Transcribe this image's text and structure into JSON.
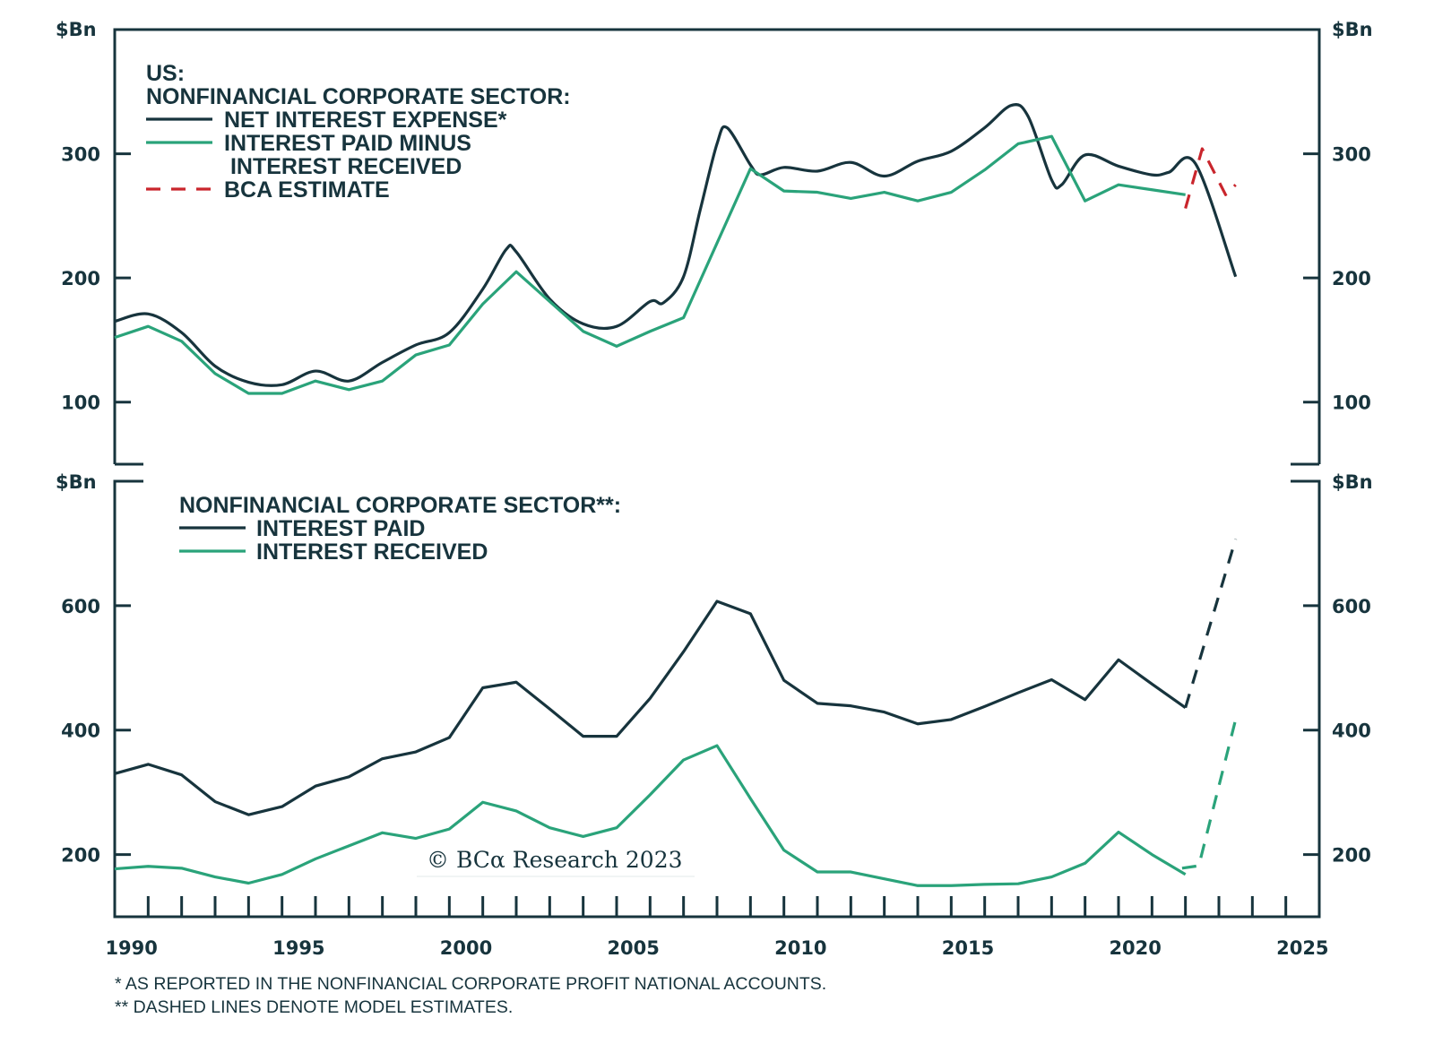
{
  "colors": {
    "dark": "#17343d",
    "green": "#2aa37a",
    "red": "#c9252c",
    "axis": "#17343d"
  },
  "chart_data": [
    {
      "type": "line",
      "panel": "top",
      "ylabel_left": "$Bn",
      "ylabel_right": "$Bn",
      "ylim": [
        50,
        400
      ],
      "yticks": [
        100,
        200,
        300
      ],
      "xlim": [
        1990,
        2026
      ],
      "grid": false,
      "legend": {
        "placement": "top-left",
        "title_lines": [
          "US:",
          "NONFINANCIAL CORPORATE SECTOR:"
        ],
        "entries": [
          {
            "label_lines": [
              "NET INTEREST EXPENSE*"
            ],
            "series": "net_interest_expense"
          },
          {
            "label_lines": [
              "INTEREST PAID MINUS",
              " INTEREST RECEIVED"
            ],
            "series": "paid_minus_received"
          },
          {
            "label_lines": [
              "BCA ESTIMATE"
            ],
            "series": "bca_estimate"
          }
        ]
      },
      "series": [
        {
          "name": "NET INTEREST EXPENSE*",
          "key": "net_interest_expense",
          "color": "#17343d",
          "style": "solid",
          "smooth": true,
          "x": [
            1990,
            1991,
            1992,
            1993,
            1994,
            1995,
            1996,
            1997,
            1998,
            1999,
            2000,
            2001,
            2001.7,
            2002,
            2003,
            2004,
            2005,
            2006,
            2006.4,
            2007,
            2007.5,
            2008,
            2008.3,
            2009,
            2009.3,
            2010,
            2011,
            2012,
            2013,
            2014,
            2015,
            2016,
            2016.8,
            2017.3,
            2018,
            2018.3,
            2019,
            2020,
            2021,
            2021.5,
            2022.3,
            2023.5
          ],
          "values": [
            165,
            171,
            156,
            129,
            116,
            114,
            125,
            117,
            132,
            146,
            156,
            191,
            223,
            221,
            183,
            163,
            161,
            181,
            180,
            201,
            255,
            308,
            321,
            291,
            283,
            289,
            286,
            293,
            282,
            294,
            302,
            321,
            339,
            330,
            279,
            275,
            299,
            290,
            283,
            285,
            292,
            201
          ]
        },
        {
          "name": "INTEREST PAID MINUS INTEREST RECEIVED",
          "key": "paid_minus_received",
          "color": "#2aa37a",
          "style": "solid",
          "smooth": false,
          "x": [
            1990,
            1991,
            1992,
            1993,
            1994,
            1995,
            1996,
            1997,
            1998,
            1999,
            2000,
            2001,
            2002,
            2003,
            2004,
            2005,
            2006,
            2007,
            2008,
            2009,
            2010,
            2011,
            2012,
            2013,
            2014,
            2015,
            2016,
            2017,
            2018,
            2019,
            2020,
            2021,
            2022
          ],
          "values": [
            152,
            161,
            149,
            123,
            107,
            107,
            117,
            110,
            117,
            138,
            146,
            179,
            205,
            181,
            157,
            145,
            157,
            168,
            228,
            288,
            270,
            269,
            264,
            269,
            262,
            269,
            287,
            308,
            314,
            262,
            275,
            271,
            267
          ]
        },
        {
          "name": "BCA ESTIMATE",
          "key": "bca_estimate",
          "color": "#c9252c",
          "style": "dashed",
          "smooth": false,
          "x": [
            2022.0,
            2022.5,
            2023.2,
            2023.5
          ],
          "values": [
            256,
            304,
            267,
            275
          ]
        }
      ]
    },
    {
      "type": "line",
      "panel": "bottom",
      "ylabel_left": "$Bn",
      "ylabel_right": "$Bn",
      "ylim": [
        100,
        800
      ],
      "yticks": [
        200,
        400,
        600
      ],
      "xlim": [
        1990,
        2026
      ],
      "grid": false,
      "legend": {
        "placement": "top-left",
        "title_lines": [
          "NONFINANCIAL CORPORATE SECTOR**:"
        ],
        "entries": [
          {
            "label_lines": [
              "INTEREST PAID"
            ],
            "series": "interest_paid"
          },
          {
            "label_lines": [
              "INTEREST RECEIVED"
            ],
            "series": "interest_received"
          }
        ]
      },
      "series": [
        {
          "name": "INTEREST PAID",
          "key": "interest_paid",
          "color": "#17343d",
          "style": "solid",
          "x": [
            1990,
            1991,
            1992,
            1993,
            1994,
            1995,
            1996,
            1997,
            1998,
            1999,
            2000,
            2001,
            2002,
            2003,
            2004,
            2005,
            2006,
            2007,
            2008,
            2009,
            2010,
            2011,
            2012,
            2013,
            2014,
            2015,
            2016,
            2017,
            2018,
            2019,
            2020,
            2021,
            2022
          ],
          "values": [
            330,
            345,
            328,
            285,
            264,
            277,
            310,
            325,
            354,
            365,
            388,
            468,
            477,
            434,
            390,
            390,
            451,
            526,
            607,
            587,
            480,
            443,
            439,
            429,
            410,
            417,
            438,
            460,
            481,
            449,
            513,
            474,
            436
          ]
        },
        {
          "name": "INTEREST PAID (MODEL ESTIMATE)",
          "key": "interest_paid_est",
          "color": "#17343d",
          "style": "dashed",
          "x": [
            2022.0,
            2023.5
          ],
          "values": [
            436,
            707
          ]
        },
        {
          "name": "INTEREST RECEIVED",
          "key": "interest_received",
          "color": "#2aa37a",
          "style": "solid",
          "x": [
            1990,
            1991,
            1992,
            1993,
            1994,
            1995,
            1996,
            1997,
            1998,
            1999,
            2000,
            2001,
            2002,
            2003,
            2004,
            2005,
            2006,
            2007,
            2008,
            2009,
            2010,
            2011,
            2012,
            2013,
            2014,
            2015,
            2016,
            2017,
            2018,
            2019,
            2020,
            2021,
            2022
          ],
          "values": [
            177,
            181,
            178,
            164,
            154,
            168,
            193,
            214,
            235,
            226,
            241,
            284,
            270,
            243,
            229,
            243,
            296,
            352,
            375,
            290,
            207,
            172,
            172,
            161,
            150,
            150,
            152,
            153,
            164,
            186,
            236,
            200,
            168
          ]
        },
        {
          "name": "INTEREST RECEIVED (MODEL ESTIMATE)",
          "key": "interest_received_est",
          "color": "#2aa37a",
          "style": "dashed",
          "x": [
            2021.9,
            2022.4,
            2023.5
          ],
          "values": [
            178,
            182,
            417
          ]
        }
      ]
    }
  ],
  "x_axis": {
    "tick_years": [
      1991,
      1992,
      1993,
      1994,
      1995,
      1996,
      1997,
      1998,
      1999,
      2000,
      2001,
      2002,
      2003,
      2004,
      2005,
      2006,
      2007,
      2008,
      2009,
      2010,
      2011,
      2012,
      2013,
      2014,
      2015,
      2016,
      2017,
      2018,
      2019,
      2020,
      2021,
      2022,
      2023,
      2024,
      2025
    ],
    "labels": [
      "1990",
      "1995",
      "2000",
      "2005",
      "2010",
      "2015",
      "2020",
      "2025"
    ]
  },
  "copyright": "© BCα Research 2023",
  "footnotes": [
    "*   AS REPORTED IN THE NONFINANCIAL CORPORATE PROFIT NATIONAL ACCOUNTS.",
    "** DASHED LINES DENOTE MODEL ESTIMATES."
  ]
}
